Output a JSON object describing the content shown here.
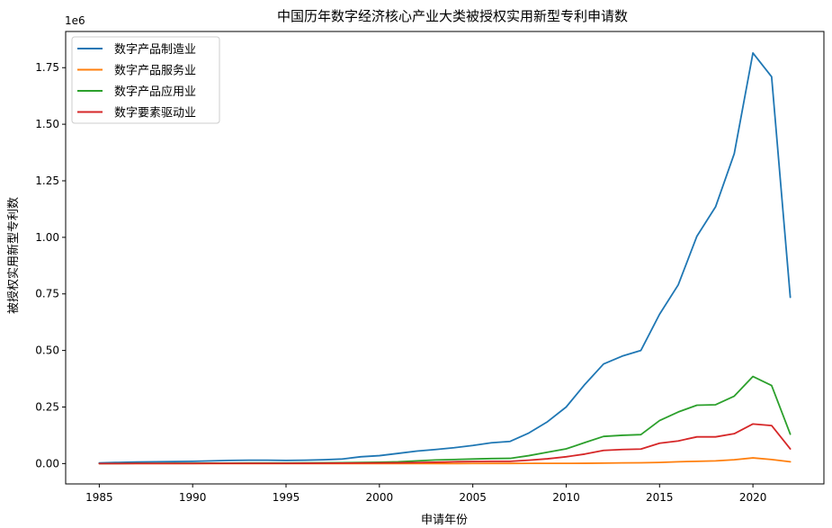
{
  "chart_data": {
    "type": "line",
    "title": "中国历年数字经济核心产业大类被授权实用新型专利申请数",
    "xlabel": "申请年份",
    "ylabel": "被授权实用新型专利数",
    "y_offset_label": "1e6",
    "xlim": [
      1983.2,
      2023.8
    ],
    "ylim": [
      -90000,
      1910000
    ],
    "x_ticks": [
      1985,
      1990,
      1995,
      2000,
      2005,
      2010,
      2015,
      2020
    ],
    "y_ticks": [
      0,
      250000,
      500000,
      750000,
      1000000,
      1250000,
      1500000,
      1750000
    ],
    "y_tick_labels": [
      "0.00",
      "0.25",
      "0.50",
      "0.75",
      "1.00",
      "1.25",
      "1.50",
      "1.75"
    ],
    "legend_position": "top-left",
    "grid": false,
    "x": [
      1985,
      1986,
      1987,
      1988,
      1989,
      1990,
      1991,
      1992,
      1993,
      1994,
      1995,
      1996,
      1997,
      1998,
      1999,
      2000,
      2001,
      2002,
      2003,
      2004,
      2005,
      2006,
      2007,
      2008,
      2009,
      2010,
      2011,
      2012,
      2013,
      2014,
      2015,
      2016,
      2017,
      2018,
      2019,
      2020,
      2021,
      2022
    ],
    "series": [
      {
        "name": "数字产品制造业",
        "color": "#1f77b4",
        "values": [
          3000,
          5000,
          7000,
          8000,
          9000,
          10000,
          12000,
          14000,
          15000,
          15000,
          14000,
          15000,
          17000,
          20000,
          30000,
          35000,
          45000,
          55000,
          62000,
          70000,
          80000,
          92000,
          98000,
          135000,
          185000,
          250000,
          350000,
          440000,
          475000,
          500000,
          660000,
          790000,
          1005000,
          1135000,
          1370000,
          1815000,
          1710000,
          735000
        ]
      },
      {
        "name": "数字产品服务业",
        "color": "#ff7f0e",
        "values": [
          0,
          0,
          0,
          0,
          0,
          0,
          0,
          0,
          0,
          0,
          0,
          0,
          0,
          0,
          0,
          0,
          0,
          0,
          0,
          0,
          500,
          600,
          700,
          800,
          900,
          1000,
          1200,
          2000,
          3000,
          3500,
          5000,
          8000,
          10000,
          12000,
          17000,
          25000,
          18000,
          8000
        ]
      },
      {
        "name": "数字产品应用业",
        "color": "#2ca02c",
        "values": [
          0,
          500,
          1000,
          1000,
          1500,
          1500,
          2000,
          2000,
          2500,
          2500,
          2500,
          3000,
          3500,
          4000,
          5000,
          6000,
          8000,
          12000,
          16000,
          18000,
          20000,
          22000,
          23000,
          35000,
          50000,
          65000,
          93000,
          120000,
          125000,
          128000,
          190000,
          228000,
          258000,
          260000,
          298000,
          385000,
          345000,
          130000
        ]
      },
      {
        "name": "数字要素驱动业",
        "color": "#d62728",
        "values": [
          0,
          0,
          500,
          500,
          500,
          500,
          800,
          800,
          1000,
          1000,
          1000,
          1200,
          1500,
          2000,
          2500,
          3000,
          3500,
          4500,
          6000,
          8000,
          9000,
          10000,
          10000,
          15000,
          21000,
          30000,
          42000,
          58000,
          62000,
          64000,
          90000,
          100000,
          118000,
          118000,
          132000,
          175000,
          168000,
          65000
        ]
      }
    ]
  }
}
